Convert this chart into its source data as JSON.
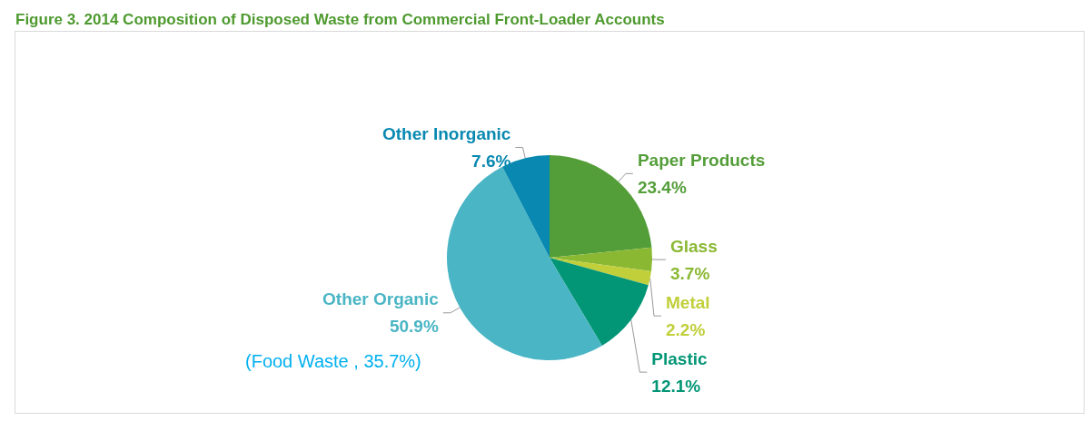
{
  "chart_data": {
    "type": "pie",
    "title": "Figure 3. 2014 Composition of Disposed Waste from Commercial Front-Loader Accounts",
    "categories": [
      "Paper Products",
      "Glass",
      "Metal",
      "Plastic",
      "Other Organic",
      "Other Inorganic"
    ],
    "values": [
      23.4,
      3.7,
      2.2,
      12.1,
      50.9,
      7.6
    ],
    "colors": [
      "#549e39",
      "#8ab833",
      "#c0cf3a",
      "#029676",
      "#4ab5c4",
      "#0989b1"
    ],
    "value_labels": [
      "23.4%",
      "3.7%",
      "2.2%",
      "12.1%",
      "50.9%",
      "7.6%"
    ],
    "legend": false,
    "annotations": [
      "(Food Waste , 35.7%)"
    ]
  }
}
